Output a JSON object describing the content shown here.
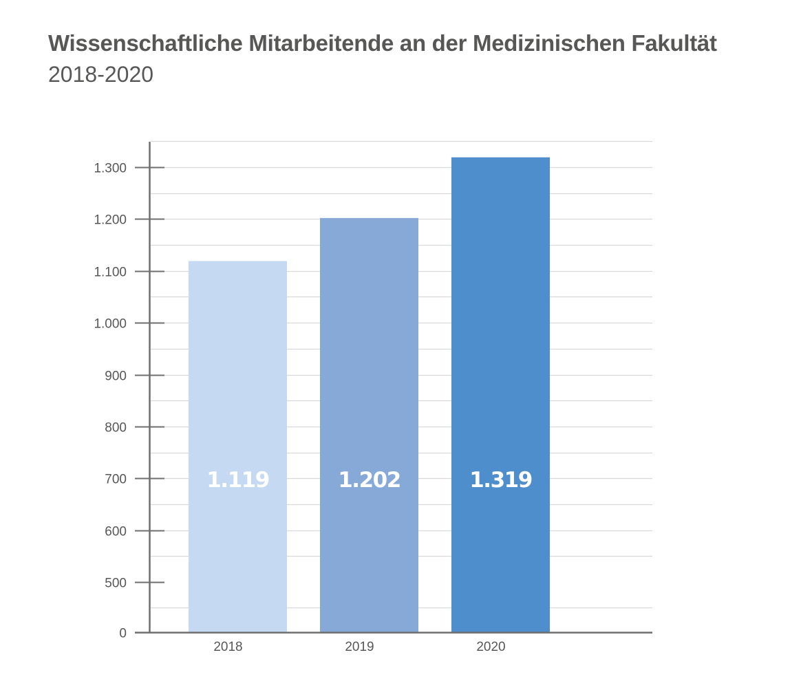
{
  "chart_data": {
    "type": "bar",
    "title": "Wissenschaftliche Mitarbeitende an der Medizinischen Fakultät",
    "subtitle": "2018-2020",
    "categories": [
      "2018",
      "2019",
      "2020"
    ],
    "values": [
      1119,
      1202,
      1319
    ],
    "data_labels": [
      "1.119",
      "1.202",
      "1.319"
    ],
    "bar_colors": [
      "#c5daf2",
      "#86a9d8",
      "#4f8ecc"
    ],
    "y_ticks": [
      0,
      500,
      600,
      700,
      800,
      900,
      1000,
      1100,
      1200,
      1300
    ],
    "y_tick_labels": [
      "0",
      "500",
      "600",
      "700",
      "800",
      "900",
      "1.000",
      "1.100",
      "1.200",
      "1.300"
    ],
    "y_axis_break": true,
    "ylim": [
      0,
      1350
    ],
    "grid": true,
    "legend": "none",
    "xlabel": "",
    "ylabel": ""
  }
}
